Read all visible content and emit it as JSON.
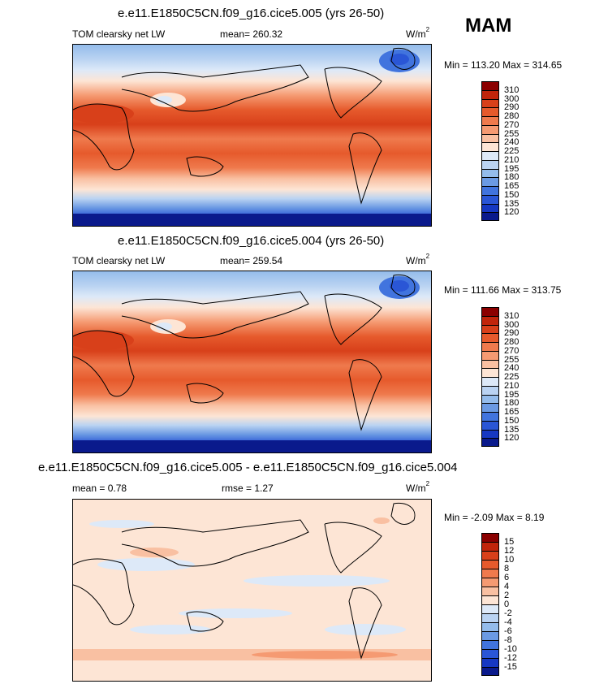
{
  "season": "MAM",
  "panels": [
    {
      "title": "e.e11.E1850C5CN.f09_g16.cice5.005 (yrs 26-50)",
      "left_label": "TOM clearsky net LW",
      "center_label": "mean= 260.32",
      "units": "W/m",
      "units_exp": "2",
      "minmax": "Min = 113.20 Max = 314.65",
      "colorbar": {
        "ticks": [
          "310",
          "300",
          "290",
          "280",
          "270",
          "255",
          "240",
          "225",
          "210",
          "195",
          "180",
          "165",
          "150",
          "135",
          "120"
        ],
        "colors": [
          "#8b0000",
          "#c1250b",
          "#d8401a",
          "#e65a2c",
          "#ef7a4d",
          "#f59a72",
          "#f9c0a2",
          "#fde5d5",
          "#dde9f8",
          "#bad3f2",
          "#94bceb",
          "#6b9ae3",
          "#4174de",
          "#2a56d6",
          "#1638c2",
          "#0a1a8c"
        ]
      }
    },
    {
      "title": "e.e11.E1850C5CN.f09_g16.cice5.004 (yrs 26-50)",
      "left_label": "TOM clearsky net LW",
      "center_label": "mean= 259.54",
      "units": "W/m",
      "units_exp": "2",
      "minmax": "Min = 111.66 Max = 313.75",
      "colorbar": {
        "ticks": [
          "310",
          "300",
          "290",
          "280",
          "270",
          "255",
          "240",
          "225",
          "210",
          "195",
          "180",
          "165",
          "150",
          "135",
          "120"
        ],
        "colors": [
          "#8b0000",
          "#c1250b",
          "#d8401a",
          "#e65a2c",
          "#ef7a4d",
          "#f59a72",
          "#f9c0a2",
          "#fde5d5",
          "#dde9f8",
          "#bad3f2",
          "#94bceb",
          "#6b9ae3",
          "#4174de",
          "#2a56d6",
          "#1638c2",
          "#0a1a8c"
        ]
      }
    },
    {
      "title": "e.e11.E1850C5CN.f09_g16.cice5.005 - e.e11.E1850C5CN.f09_g16.cice5.004",
      "left_label": "mean =   0.78",
      "center_label": "rmse =   1.27",
      "units": "W/m",
      "units_exp": "2",
      "minmax": "Min =  -2.09 Max =   8.19",
      "colorbar": {
        "ticks": [
          "15",
          "12",
          "10",
          "8",
          "6",
          "4",
          "2",
          "0",
          "-2",
          "-4",
          "-6",
          "-8",
          "-10",
          "-12",
          "-15"
        ],
        "colors": [
          "#8b0000",
          "#c1250b",
          "#d8401a",
          "#e65a2c",
          "#ef7a4d",
          "#f59a72",
          "#f9c0a2",
          "#fde5d5",
          "#dde9f8",
          "#bad3f2",
          "#94bceb",
          "#6b9ae3",
          "#4174de",
          "#2a56d6",
          "#1638c2",
          "#0a1a8c"
        ]
      }
    }
  ]
}
